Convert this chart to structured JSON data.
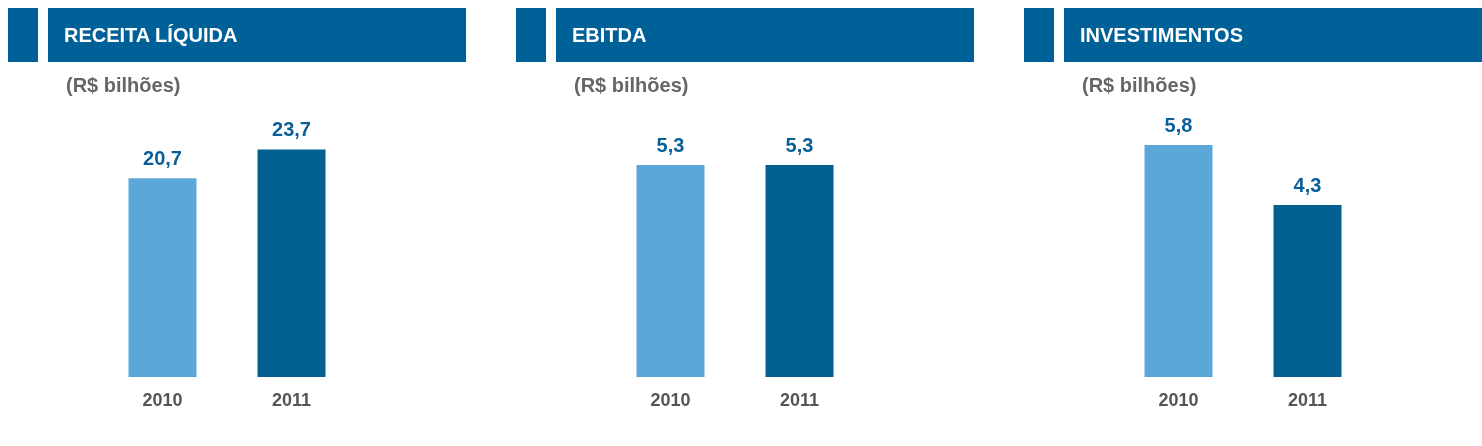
{
  "chart_data": [
    {
      "type": "bar",
      "title": "RECEITA LÍQUIDA",
      "subtitle": "(R$ bilhões)",
      "categories": [
        "2010",
        "2011"
      ],
      "values": [
        20.7,
        23.7
      ],
      "colors": [
        "#5aa7d8",
        "#006090"
      ],
      "value_labels": [
        "20,7",
        "23,7"
      ]
    },
    {
      "type": "bar",
      "title": "EBITDA",
      "subtitle": "(R$ bilhões)",
      "categories": [
        "2010",
        "2011"
      ],
      "values": [
        5.3,
        5.3
      ],
      "colors": [
        "#5aa7d8",
        "#006090"
      ],
      "value_labels": [
        "5,3",
        "5,3"
      ]
    },
    {
      "type": "bar",
      "title": "INVESTIMENTOS",
      "subtitle": "(R$ bilhões)",
      "categories": [
        "2010",
        "2011"
      ],
      "values": [
        5.8,
        4.3
      ],
      "colors": [
        "#5aa7d8",
        "#006090"
      ],
      "value_labels": [
        "5,8",
        "4,3"
      ]
    }
  ]
}
